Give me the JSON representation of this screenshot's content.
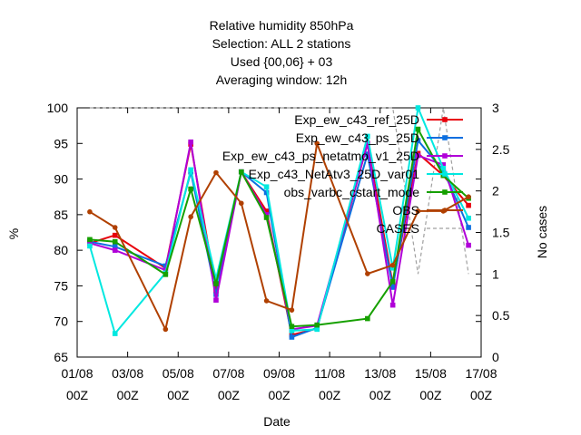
{
  "chart_data": {
    "type": "line",
    "title_lines": [
      "Relative humidity 850hPa",
      "Selection: ALL       2 stations",
      "Used {00,06} + 03",
      "Averaging window: 12h"
    ],
    "xlabel": "Date",
    "ylabel": "%",
    "y2label": "No cases",
    "x_tick_labels": [
      [
        "01/08",
        "00Z"
      ],
      [
        "03/08",
        "00Z"
      ],
      [
        "05/08",
        "00Z"
      ],
      [
        "07/08",
        "00Z"
      ],
      [
        "09/08",
        "00Z"
      ],
      [
        "11/08",
        "00Z"
      ],
      [
        "13/08",
        "00Z"
      ],
      [
        "15/08",
        "00Z"
      ],
      [
        "17/08",
        "00Z"
      ]
    ],
    "xlim_days": [
      0,
      16
    ],
    "ylim": [
      65,
      100
    ],
    "yticks": [
      "65",
      "70",
      "75",
      "80",
      "85",
      "90",
      "95",
      "100"
    ],
    "y2lim": [
      0,
      3
    ],
    "y2ticks": [
      "0",
      "0.5",
      "1",
      "1.5",
      "2",
      "2.5",
      "3"
    ],
    "grid": false,
    "legend_position": "top-right",
    "series": [
      {
        "name": "Exp_ew_c43_ref_25D",
        "color": "#e8000b",
        "marker": "square",
        "x": [
          0.5,
          1.5,
          3.5,
          4.5,
          5.5,
          6.5,
          7.5,
          8.5,
          9.5,
          11.5,
          12.5,
          13.5,
          14.5,
          15.5
        ],
        "y": [
          81.0,
          82.1,
          77.5,
          94.9,
          74.3,
          91.0,
          85.5,
          68.1,
          69.0,
          95.0,
          75.2,
          93.6,
          90.5,
          86.3
        ]
      },
      {
        "name": "Exp_ew_c43_ps_25D",
        "color": "#0d6fe0",
        "marker": "square",
        "x": [
          0.5,
          1.5,
          3.5,
          4.5,
          5.5,
          6.5,
          7.5,
          8.5,
          9.5,
          11.5,
          12.5,
          13.5,
          14.5,
          15.5
        ],
        "y": [
          81.2,
          80.5,
          77.8,
          91.0,
          73.8,
          91.0,
          88.1,
          67.8,
          69.1,
          93.5,
          74.8,
          95.4,
          91.2,
          83.2
        ]
      },
      {
        "name": "Exp_ew_c43_ps_netatmo_v1_25D",
        "color": "#b000d8",
        "marker": "square",
        "x": [
          0.5,
          1.5,
          3.5,
          4.5,
          5.5,
          6.5,
          7.5,
          8.5,
          9.5,
          11.5,
          12.5,
          13.5,
          14.5,
          15.5
        ],
        "y": [
          81.0,
          80.0,
          77.2,
          95.2,
          73.0,
          91.0,
          85.0,
          68.9,
          69.4,
          95.0,
          72.3,
          93.3,
          92.0,
          80.7
        ]
      },
      {
        "name": "Exp_c43_NetAtv3_25D_var01",
        "color": "#00e8e0",
        "marker": "square",
        "x": [
          0.5,
          1.5,
          3.5,
          4.5,
          5.5,
          6.5,
          7.5,
          8.5,
          9.5,
          11.5,
          12.5,
          13.5,
          14.5,
          15.5
        ],
        "y": [
          80.6,
          68.3,
          76.8,
          91.3,
          76.0,
          91.0,
          88.9,
          68.7,
          68.9,
          96.0,
          77.5,
          100.0,
          91.5,
          84.5
        ]
      },
      {
        "name": "obs_varbc_cstart_mode",
        "color": "#16a000",
        "marker": "square",
        "x": [
          0.5,
          1.5,
          3.5,
          4.5,
          5.5,
          6.5,
          7.5,
          8.5,
          9.5,
          11.5,
          12.5,
          13.5,
          14.5,
          15.5
        ],
        "y": [
          81.5,
          81.2,
          76.6,
          88.6,
          75.3,
          91.0,
          84.6,
          69.3,
          69.5,
          70.4,
          75.6,
          97.0,
          90.5,
          87.3
        ]
      },
      {
        "name": "OBS",
        "color": "#b04000",
        "marker": "circle",
        "x": [
          0.5,
          1.5,
          3.5,
          4.5,
          5.5,
          6.5,
          7.5,
          8.5,
          9.5,
          11.5,
          12.5,
          13.5,
          14.5,
          15.5
        ],
        "y": [
          85.4,
          83.2,
          68.9,
          84.7,
          90.9,
          86.6,
          72.9,
          71.6,
          95.0,
          76.7,
          77.9,
          85.5,
          85.5,
          87.5
        ]
      }
    ],
    "cases": {
      "name": "CASES",
      "color": "#a0a0a0",
      "dashed": true,
      "x": [
        0.5,
        1.5,
        3.5,
        4.5,
        5.5,
        6.5,
        7.5,
        8.5,
        9.5,
        11.5,
        12.5,
        13.5,
        14.5,
        15.5
      ],
      "y": [
        3,
        3,
        3,
        3,
        3,
        3,
        3,
        3,
        3,
        3,
        3,
        1,
        3,
        1
      ]
    }
  }
}
